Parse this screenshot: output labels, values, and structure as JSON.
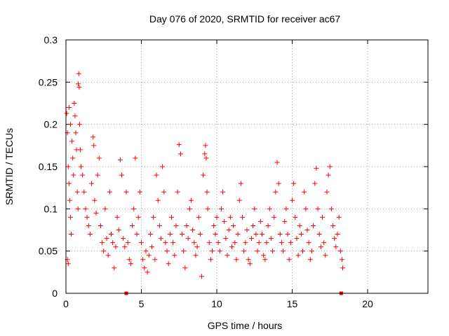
{
  "chart_data": {
    "type": "scatter",
    "title": "Day 076 of 2020, SRMTID for receiver ac67",
    "xlabel": "GPS time / hours",
    "ylabel": "SRMTID / TECUs",
    "xlim": [
      0,
      24
    ],
    "ylim": [
      0,
      0.3
    ],
    "x_ticks": [
      0,
      5,
      10,
      15,
      20
    ],
    "x_tick_labels": [
      "0",
      "5",
      "10",
      "15",
      "20"
    ],
    "y_ticks": [
      0,
      0.05,
      0.1,
      0.15,
      0.2,
      0.25,
      0.3
    ],
    "y_tick_labels": [
      "0",
      "0.05",
      "0.1",
      "0.15",
      "0.2",
      "0.25",
      "0.3"
    ],
    "grid": true,
    "marker": "+",
    "color": "#ff0000",
    "series": [
      {
        "name": "SRMTID",
        "points": [
          [
            0.05,
            0.213
          ],
          [
            0.1,
            0.19
          ],
          [
            0.15,
            0.15
          ],
          [
            0.2,
            0.13
          ],
          [
            0.25,
            0.11
          ],
          [
            0.3,
            0.09
          ],
          [
            0.35,
            0.07
          ],
          [
            0.1,
            0.04
          ],
          [
            0.15,
            0.035
          ],
          [
            0.2,
            0.22
          ],
          [
            0.3,
            0.2
          ],
          [
            0.4,
            0.18
          ],
          [
            0.45,
            0.16
          ],
          [
            0.5,
            0.14
          ],
          [
            0.55,
            0.225
          ],
          [
            0.6,
            0.21
          ],
          [
            0.65,
            0.19
          ],
          [
            0.7,
            0.17
          ],
          [
            0.75,
            0.12
          ],
          [
            0.8,
            0.1
          ],
          [
            0.85,
            0.26
          ],
          [
            0.82,
            0.248
          ],
          [
            0.88,
            0.244
          ],
          [
            0.9,
            0.2
          ],
          [
            0.95,
            0.17
          ],
          [
            1.0,
            0.15
          ],
          [
            1.1,
            0.14
          ],
          [
            1.2,
            0.12
          ],
          [
            1.3,
            0.1
          ],
          [
            1.4,
            0.09
          ],
          [
            1.5,
            0.08
          ],
          [
            1.6,
            0.07
          ],
          [
            1.7,
            0.13
          ],
          [
            1.8,
            0.185
          ],
          [
            1.85,
            0.175
          ],
          [
            1.9,
            0.11
          ],
          [
            2.0,
            0.095
          ],
          [
            2.1,
            0.14
          ],
          [
            2.2,
            0.16
          ],
          [
            2.3,
            0.08
          ],
          [
            2.4,
            0.06
          ],
          [
            2.5,
            0.05
          ],
          [
            2.6,
            0.1
          ],
          [
            2.7,
            0.065
          ],
          [
            2.8,
            0.045
          ],
          [
            2.9,
            0.12
          ],
          [
            3.0,
            0.07
          ],
          [
            3.1,
            0.06
          ],
          [
            3.2,
            0.03
          ],
          [
            3.3,
            0.055
          ],
          [
            3.4,
            0.09
          ],
          [
            3.5,
            0.075
          ],
          [
            3.6,
            0.158
          ],
          [
            3.7,
            0.14
          ],
          [
            3.8,
            0.065
          ],
          [
            3.9,
            0.055
          ],
          [
            4.0,
            0.12
          ],
          [
            4.1,
            0.06
          ],
          [
            4.2,
            0.04
          ],
          [
            4.3,
            0.035
          ],
          [
            4.4,
            0.08
          ],
          [
            4.5,
            0.1
          ],
          [
            4.6,
            0.16
          ],
          [
            4.7,
            0.07
          ],
          [
            4.8,
            0.09
          ],
          [
            4.9,
            0.12
          ],
          [
            5.0,
            0.06
          ],
          [
            5.1,
            0.04
          ],
          [
            5.2,
            0.03
          ],
          [
            5.3,
            0.05
          ],
          [
            5.4,
            0.025
          ],
          [
            5.5,
            0.045
          ],
          [
            5.6,
            0.07
          ],
          [
            5.7,
            0.055
          ],
          [
            5.8,
            0.09
          ],
          [
            5.9,
            0.04
          ],
          [
            6.0,
            0.14
          ],
          [
            6.1,
            0.11
          ],
          [
            6.2,
            0.08
          ],
          [
            6.3,
            0.065
          ],
          [
            6.4,
            0.15
          ],
          [
            6.5,
            0.12
          ],
          [
            6.6,
            0.06
          ],
          [
            6.7,
            0.05
          ],
          [
            6.8,
            0.035
          ],
          [
            6.9,
            0.07
          ],
          [
            7.0,
            0.09
          ],
          [
            7.1,
            0.06
          ],
          [
            7.2,
            0.045
          ],
          [
            7.3,
            0.08
          ],
          [
            7.4,
            0.12
          ],
          [
            7.5,
            0.176
          ],
          [
            7.6,
            0.165
          ],
          [
            7.7,
            0.07
          ],
          [
            7.8,
            0.05
          ],
          [
            7.9,
            0.03
          ],
          [
            8.0,
            0.08
          ],
          [
            8.1,
            0.065
          ],
          [
            8.2,
            0.1
          ],
          [
            8.3,
            0.11
          ],
          [
            8.4,
            0.075
          ],
          [
            8.5,
            0.06
          ],
          [
            8.6,
            0.045
          ],
          [
            8.7,
            0.055
          ],
          [
            8.8,
            0.09
          ],
          [
            8.9,
            0.07
          ],
          [
            9.0,
            0.02
          ],
          [
            9.1,
            0.14
          ],
          [
            9.2,
            0.165
          ],
          [
            9.25,
            0.175
          ],
          [
            9.3,
            0.16
          ],
          [
            9.35,
            0.12
          ],
          [
            9.4,
            0.1
          ],
          [
            9.5,
            0.06
          ],
          [
            9.6,
            0.04
          ],
          [
            9.7,
            0.05
          ],
          [
            9.8,
            0.08
          ],
          [
            9.9,
            0.07
          ],
          [
            10.0,
            0.09
          ],
          [
            10.1,
            0.06
          ],
          [
            10.2,
            0.05
          ],
          [
            10.3,
            0.1
          ],
          [
            10.4,
            0.12
          ],
          [
            10.5,
            0.085
          ],
          [
            10.6,
            0.065
          ],
          [
            10.7,
            0.045
          ],
          [
            10.8,
            0.075
          ],
          [
            10.9,
            0.09
          ],
          [
            11.0,
            0.055
          ],
          [
            11.1,
            0.08
          ],
          [
            11.2,
            0.06
          ],
          [
            11.3,
            0.04
          ],
          [
            11.4,
            0.07
          ],
          [
            11.5,
            0.11
          ],
          [
            11.6,
            0.13
          ],
          [
            11.7,
            0.09
          ],
          [
            11.8,
            0.05
          ],
          [
            11.9,
            0.06
          ],
          [
            12.0,
            0.075
          ],
          [
            12.1,
            0.04
          ],
          [
            12.2,
            0.035
          ],
          [
            12.3,
            0.065
          ],
          [
            12.4,
            0.08
          ],
          [
            12.5,
            0.1
          ],
          [
            12.6,
            0.07
          ],
          [
            12.7,
            0.05
          ],
          [
            12.8,
            0.06
          ],
          [
            12.9,
            0.085
          ],
          [
            13.0,
            0.07
          ],
          [
            13.1,
            0.045
          ],
          [
            13.2,
            0.04
          ],
          [
            13.3,
            0.06
          ],
          [
            13.4,
            0.08
          ],
          [
            13.5,
            0.1
          ],
          [
            13.6,
            0.065
          ],
          [
            13.7,
            0.05
          ],
          [
            13.8,
            0.09
          ],
          [
            13.9,
            0.12
          ],
          [
            14.0,
            0.155
          ],
          [
            14.1,
            0.13
          ],
          [
            14.2,
            0.07
          ],
          [
            14.3,
            0.06
          ],
          [
            14.4,
            0.05
          ],
          [
            14.5,
            0.085
          ],
          [
            14.6,
            0.1
          ],
          [
            14.7,
            0.07
          ],
          [
            14.8,
            0.04
          ],
          [
            14.9,
            0.06
          ],
          [
            15.0,
            0.11
          ],
          [
            15.1,
            0.13
          ],
          [
            15.2,
            0.09
          ],
          [
            15.3,
            0.065
          ],
          [
            15.4,
            0.045
          ],
          [
            15.5,
            0.08
          ],
          [
            15.6,
            0.07
          ],
          [
            15.7,
            0.05
          ],
          [
            15.8,
            0.12
          ],
          [
            15.9,
            0.1
          ],
          [
            16.0,
            0.075
          ],
          [
            16.1,
            0.06
          ],
          [
            16.2,
            0.04
          ],
          [
            16.3,
            0.05
          ],
          [
            16.4,
            0.08
          ],
          [
            16.5,
            0.13
          ],
          [
            16.6,
            0.148
          ],
          [
            16.7,
            0.1
          ],
          [
            16.8,
            0.07
          ],
          [
            16.9,
            0.055
          ],
          [
            17.0,
            0.09
          ],
          [
            17.1,
            0.06
          ],
          [
            17.2,
            0.045
          ],
          [
            17.3,
            0.12
          ],
          [
            17.4,
            0.14
          ],
          [
            17.5,
            0.15
          ],
          [
            17.6,
            0.1
          ],
          [
            17.7,
            0.08
          ],
          [
            17.8,
            0.065
          ],
          [
            17.9,
            0.055
          ],
          [
            18.0,
            0.07
          ],
          [
            18.1,
            0.09
          ],
          [
            18.2,
            0.05
          ],
          [
            18.3,
            0.04
          ],
          [
            18.35,
            0.03
          ]
        ]
      }
    ],
    "x_markers": [
      {
        "x": 4.0,
        "symbol": "filled-square"
      },
      {
        "x": 18.25,
        "symbol": "filled-square"
      }
    ]
  }
}
